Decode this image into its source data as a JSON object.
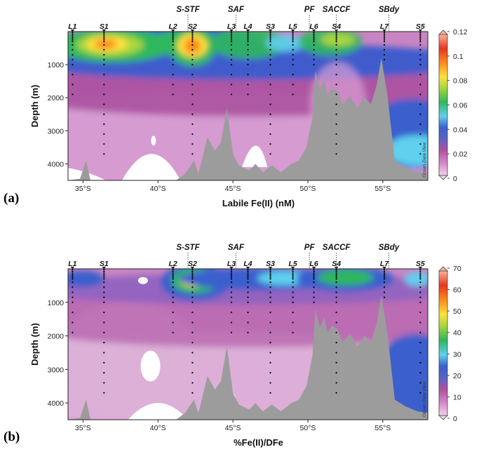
{
  "chart_data": [
    {
      "type": "heatmap",
      "panel_label": "(a)",
      "xlabel": "Labile Fe(II) (nM)",
      "ylabel": "Depth (m)",
      "xlim": [
        34,
        58
      ],
      "ylim": [
        4500,
        0
      ],
      "x_tick_values": [
        35,
        40,
        45,
        50,
        55
      ],
      "x_tick_labels": [
        "35°S",
        "40°S",
        "45°S",
        "50°S",
        "55°S"
      ],
      "y_ticks": [
        1000,
        2000,
        3000,
        4000
      ],
      "colorbar": {
        "range": [
          0,
          0.12
        ],
        "ticks": [
          "0",
          "0.02",
          "0.04",
          "0.06",
          "0.08",
          "0.1",
          "0.12"
        ]
      },
      "watermark": "Ocean Data View",
      "stations": [
        {
          "label": "L1",
          "lat": 34.3
        },
        {
          "label": "S1",
          "lat": 36.4
        },
        {
          "label": "L2",
          "lat": 41.0
        },
        {
          "label": "S2",
          "lat": 42.3
        },
        {
          "label": "L3",
          "lat": 44.9
        },
        {
          "label": "L4",
          "lat": 46.0
        },
        {
          "label": "S3",
          "lat": 47.5
        },
        {
          "label": "L5",
          "lat": 49.0
        },
        {
          "label": "L6",
          "lat": 50.4
        },
        {
          "label": "S4",
          "lat": 51.9
        },
        {
          "label": "L7",
          "lat": 55.1
        },
        {
          "label": "S5",
          "lat": 57.5
        }
      ],
      "fronts": [
        {
          "label": "S-STF",
          "lat": 42.0
        },
        {
          "label": "SAF",
          "lat": 45.2
        },
        {
          "label": "PF",
          "lat": 50.1
        },
        {
          "label": "SACCF",
          "lat": 51.9
        },
        {
          "label": "SBdy",
          "lat": 55.4
        }
      ]
    },
    {
      "type": "heatmap",
      "panel_label": "(b)",
      "xlabel": "%Fe(II)/DFe",
      "ylabel": "Depth (m)",
      "xlim": [
        34,
        58
      ],
      "ylim": [
        4500,
        0
      ],
      "x_tick_values": [
        35,
        40,
        45,
        50,
        55
      ],
      "x_tick_labels": [
        "35°S",
        "40°S",
        "45°S",
        "50°S",
        "55°S"
      ],
      "y_ticks": [
        1000,
        2000,
        3000,
        4000
      ],
      "colorbar": {
        "range": [
          0,
          70
        ],
        "ticks": [
          "0",
          "10",
          "20",
          "30",
          "40",
          "50",
          "60",
          "70"
        ]
      },
      "watermark": "Ocean Data View",
      "stations": [
        {
          "label": "L1",
          "lat": 34.3
        },
        {
          "label": "S1",
          "lat": 36.4
        },
        {
          "label": "L2",
          "lat": 41.0
        },
        {
          "label": "S2",
          "lat": 42.3
        },
        {
          "label": "L3",
          "lat": 44.9
        },
        {
          "label": "L4",
          "lat": 46.0
        },
        {
          "label": "S3",
          "lat": 47.5
        },
        {
          "label": "L5",
          "lat": 49.0
        },
        {
          "label": "L6",
          "lat": 50.4
        },
        {
          "label": "S4",
          "lat": 51.9
        },
        {
          "label": "L7",
          "lat": 55.1
        },
        {
          "label": "S5",
          "lat": 57.5
        }
      ],
      "fronts": [
        {
          "label": "S-STF",
          "lat": 42.0
        },
        {
          "label": "SAF",
          "lat": 45.2
        },
        {
          "label": "PF",
          "lat": 50.1
        },
        {
          "label": "SACCF",
          "lat": 51.9
        },
        {
          "label": "SBdy",
          "lat": 55.4
        }
      ]
    }
  ]
}
